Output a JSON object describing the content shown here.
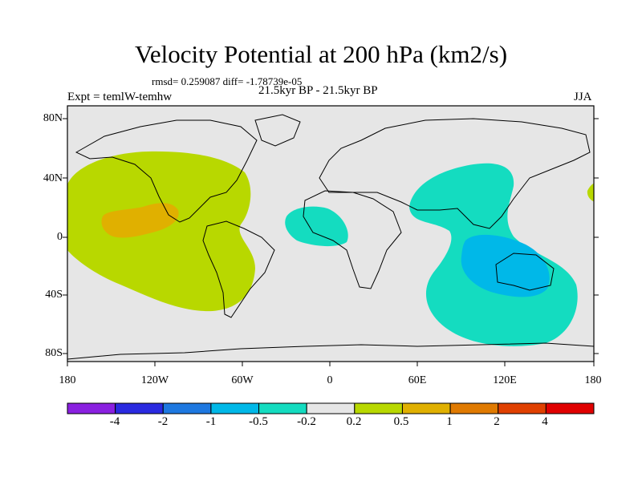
{
  "title": "Velocity Potential at 200 hPa (km2/s)",
  "stats": "rmsd= 0.259087 diff= -1.78739e-05",
  "experiment": "Expt = temlW-temhw",
  "period": "21.5kyr BP - 21.5kyr BP",
  "season": "JJA",
  "lat_labels": [
    "80N",
    "40N",
    "0",
    "40S",
    "80S"
  ],
  "lon_labels": [
    "180",
    "120W",
    "60W",
    "0",
    "60E",
    "120E",
    "180"
  ],
  "colorbar": {
    "colors": [
      "#8a20e0",
      "#2a2ae0",
      "#1e78e0",
      "#00b8e8",
      "#14dcc0",
      "#e6e6e6",
      "#b8d800",
      "#e0b000",
      "#e07a00",
      "#e04000",
      "#e00000"
    ],
    "labels": [
      "-4",
      "-2",
      "-1",
      "-0.5",
      "-0.2",
      "0.2",
      "0.5",
      "1",
      "2",
      "4"
    ]
  },
  "map_colors": {
    "background": "#e6e6e6",
    "positive_weak": "#b8d800",
    "positive_mid": "#e0b000",
    "negative_weak": "#14dcc0",
    "negative_mid": "#00b8e8"
  }
}
